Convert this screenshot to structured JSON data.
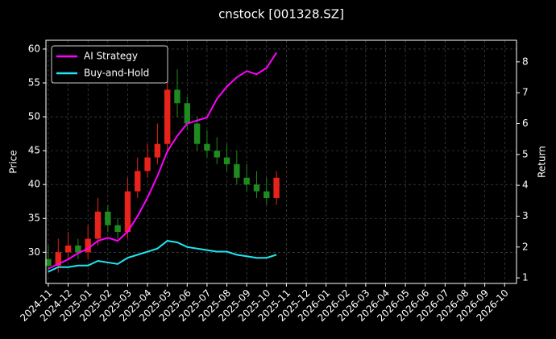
{
  "chart_data": {
    "type": "candlestick",
    "title": "cnstock [001328.SZ]",
    "y_label": "Price",
    "y2_label": "Return",
    "x": [
      0,
      0.5,
      1,
      1.5,
      2,
      2.5,
      3,
      3.5,
      4,
      4.5,
      5,
      5.5,
      6,
      6.5,
      7,
      7.5,
      8,
      8.5,
      9,
      9.5,
      10,
      10.5,
      11,
      11.5
    ],
    "open": [
      29,
      28,
      30,
      31,
      30,
      32,
      36,
      34,
      33,
      39,
      42,
      44,
      46,
      54,
      52,
      49,
      46,
      45,
      44,
      43,
      41,
      40,
      39,
      38
    ],
    "high": [
      31,
      32,
      33,
      32,
      34,
      38,
      37,
      35,
      41,
      44,
      46,
      49,
      59,
      57,
      53,
      50,
      48,
      47,
      46,
      45,
      43,
      42,
      41,
      42
    ],
    "low": [
      27,
      27,
      29,
      29,
      29,
      31,
      33,
      32,
      32,
      38,
      41,
      43,
      45,
      50,
      48,
      45,
      44,
      43,
      42,
      40,
      39,
      38,
      37,
      37
    ],
    "close": [
      28,
      30,
      31,
      30,
      32,
      36,
      34,
      33,
      39,
      42,
      44,
      46,
      54,
      52,
      49,
      46,
      45,
      44,
      43,
      41,
      40,
      39,
      38,
      41
    ],
    "up_color": "#e8231c",
    "down_color": "#1f8a1f",
    "series": [
      {
        "name": "AI Strategy",
        "color": "#ff00ff",
        "axis": "y2",
        "values": [
          1.3,
          1.45,
          1.6,
          1.8,
          1.95,
          2.2,
          2.3,
          2.2,
          2.5,
          3.0,
          3.6,
          4.3,
          5.1,
          5.6,
          6.0,
          6.1,
          6.2,
          6.8,
          7.2,
          7.5,
          7.7,
          7.6,
          7.8,
          8.3
        ]
      },
      {
        "name": "Buy-and-Hold",
        "color": "#1ee8f2",
        "axis": "y2",
        "values": [
          1.2,
          1.35,
          1.35,
          1.4,
          1.4,
          1.55,
          1.5,
          1.45,
          1.65,
          1.75,
          1.85,
          1.95,
          2.2,
          2.15,
          2.0,
          1.95,
          1.9,
          1.85,
          1.85,
          1.75,
          1.7,
          1.65,
          1.65,
          1.75
        ]
      }
    ],
    "xlim": [
      -0.12,
      23.6
    ],
    "xticks": [
      {
        "value": 0,
        "label": "2024-11"
      },
      {
        "value": 1,
        "label": "2024-12"
      },
      {
        "value": 2,
        "label": "2025-01"
      },
      {
        "value": 3,
        "label": "2025-02"
      },
      {
        "value": 4,
        "label": "2025-03"
      },
      {
        "value": 5,
        "label": "2025-04"
      },
      {
        "value": 6,
        "label": "2025-05"
      },
      {
        "value": 7,
        "label": "2025-06"
      },
      {
        "value": 8,
        "label": "2025-07"
      },
      {
        "value": 9,
        "label": "2025-08"
      },
      {
        "value": 10,
        "label": "2025-09"
      },
      {
        "value": 11,
        "label": "2025-10"
      },
      {
        "value": 12,
        "label": "2025-11"
      },
      {
        "value": 13,
        "label": "2025-12"
      },
      {
        "value": 14,
        "label": "2026-01"
      },
      {
        "value": 15,
        "label": "2026-02"
      },
      {
        "value": 16,
        "label": "2026-03"
      },
      {
        "value": 17,
        "label": "2026-04"
      },
      {
        "value": 18,
        "label": "2026-05"
      },
      {
        "value": 19,
        "label": "2026-06"
      },
      {
        "value": 20,
        "label": "2026-07"
      },
      {
        "value": 21,
        "label": "2026-08"
      },
      {
        "value": 22,
        "label": "2026-09"
      },
      {
        "value": 23,
        "label": "2026-10"
      }
    ],
    "ylim": [
      25.4,
      61.3
    ],
    "yticks": [
      30,
      35,
      40,
      45,
      50,
      55,
      60
    ],
    "y2lim": [
      0.82,
      8.7
    ],
    "y2ticks": [
      1,
      2,
      3,
      4,
      5,
      6,
      7,
      8
    ],
    "grid": true,
    "legend": "upper left"
  }
}
